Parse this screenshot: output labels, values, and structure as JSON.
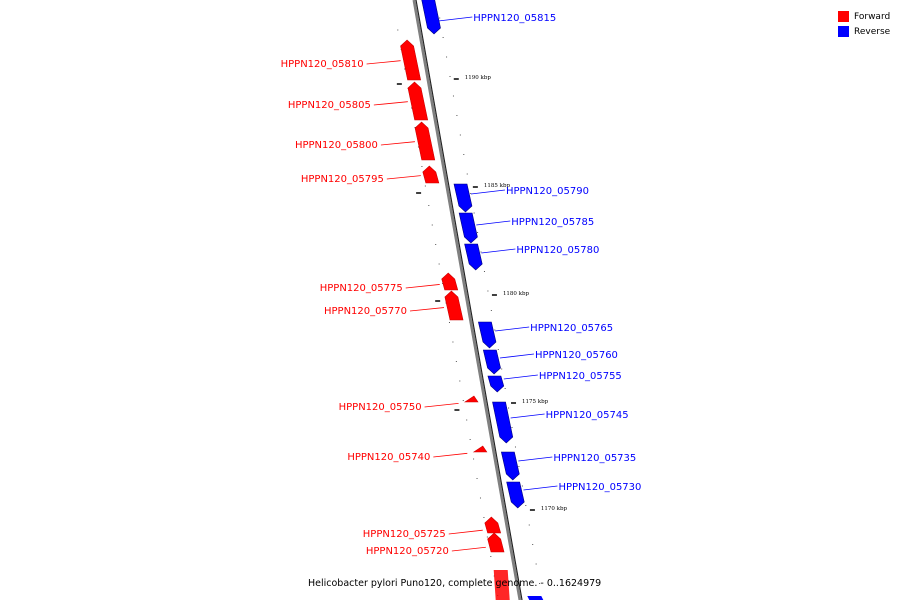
{
  "colors": {
    "forward": "#ff0000",
    "reverse": "#0000ff",
    "backbone": "#808080"
  },
  "legend": [
    {
      "label": "Forward",
      "color": "#ff0000"
    },
    {
      "label": "Reverse",
      "color": "#0000ff"
    }
  ],
  "caption": "Helicobacter pylori Puno120, complete genome. - 0..1624979",
  "scale_labels": [
    "1190 kbp",
    "1185 kbp",
    "1180 kbp",
    "1175 kbp",
    "1170 kbp"
  ],
  "genes": [
    {
      "name": "HPPN120_05815",
      "strand": "reverse"
    },
    {
      "name": "HPPN120_05810",
      "strand": "forward"
    },
    {
      "name": "HPPN120_05805",
      "strand": "forward"
    },
    {
      "name": "HPPN120_05800",
      "strand": "forward"
    },
    {
      "name": "HPPN120_05795",
      "strand": "forward"
    },
    {
      "name": "HPPN120_05790",
      "strand": "reverse"
    },
    {
      "name": "HPPN120_05785",
      "strand": "reverse"
    },
    {
      "name": "HPPN120_05780",
      "strand": "reverse"
    },
    {
      "name": "HPPN120_05775",
      "strand": "forward"
    },
    {
      "name": "HPPN120_05770",
      "strand": "forward"
    },
    {
      "name": "HPPN120_05765",
      "strand": "reverse"
    },
    {
      "name": "HPPN120_05760",
      "strand": "reverse"
    },
    {
      "name": "HPPN120_05755",
      "strand": "reverse"
    },
    {
      "name": "HPPN120_05750",
      "strand": "forward"
    },
    {
      "name": "HPPN120_05745",
      "strand": "reverse"
    },
    {
      "name": "HPPN120_05740",
      "strand": "forward"
    },
    {
      "name": "HPPN120_05735",
      "strand": "reverse"
    },
    {
      "name": "HPPN120_05730",
      "strand": "reverse"
    },
    {
      "name": "HPPN120_05725",
      "strand": "forward"
    },
    {
      "name": "HPPN120_05720",
      "strand": "forward"
    }
  ]
}
